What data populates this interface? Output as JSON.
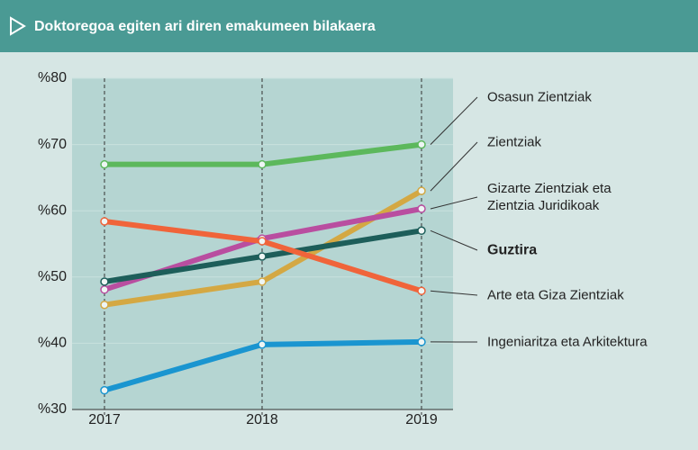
{
  "chart_data": {
    "type": "line",
    "title": "Doktoregoa egiten ari diren emakumeen bilakaera",
    "categories": [
      "2017",
      "2018",
      "2019"
    ],
    "series": [
      {
        "name": "Osasun Zientziak",
        "color": "#5cb85c",
        "values": [
          67,
          67,
          70
        ]
      },
      {
        "name": "Zientziak",
        "color": "#d4a843",
        "values": [
          45.8,
          49.3,
          63
        ]
      },
      {
        "name": "Gizarte Zientziak eta Zientzia Juridikoak",
        "color": "#b94ea0",
        "values": [
          48.1,
          55.8,
          60.3
        ]
      },
      {
        "name": "Guztira",
        "color": "#1d5e5a",
        "values": [
          49.3,
          53.1,
          57
        ]
      },
      {
        "name": "Arte eta Giza Zientziak",
        "color": "#f0643a",
        "values": [
          58.4,
          55.4,
          47.9
        ]
      },
      {
        "name": "Ingeniaritza eta Arkitektura",
        "color": "#1a95d0",
        "values": [
          32.9,
          39.8,
          40.2
        ]
      }
    ],
    "ylim": [
      30,
      80
    ],
    "yticks": [
      {
        "value": 30,
        "label": "%30"
      },
      {
        "value": 40,
        "label": "%40"
      },
      {
        "value": 50,
        "label": "%50"
      },
      {
        "value": 60,
        "label": "%60"
      },
      {
        "value": 70,
        "label": "%70"
      },
      {
        "value": 80,
        "label": "%80"
      }
    ],
    "grid": true
  }
}
